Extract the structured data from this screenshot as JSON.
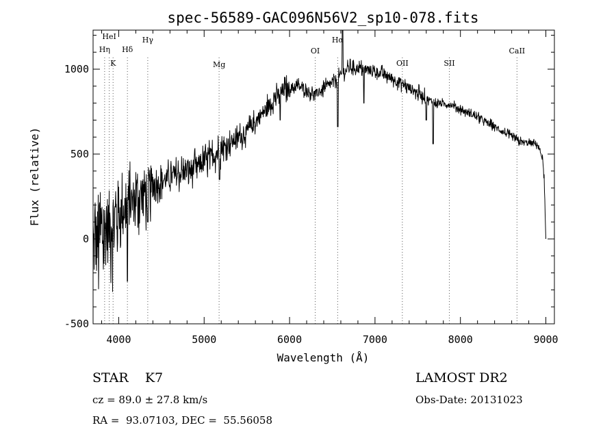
{
  "chart_data": {
    "type": "line",
    "title": "spec-56589-GAC096N56V2_sp10-078.fits",
    "xlabel": "Wavelength (Å)",
    "ylabel": "Flux (relative)",
    "xlim": [
      3700,
      9100
    ],
    "ylim": [
      -500,
      1230
    ],
    "xticks": [
      4000,
      5000,
      6000,
      7000,
      8000,
      9000
    ],
    "yticks": [
      -500,
      0,
      500,
      1000
    ],
    "grid": false,
    "spectral_lines": [
      {
        "name": "HeI",
        "wavelength": 3889
      },
      {
        "name": "Hη",
        "wavelength": 3835
      },
      {
        "name": "K",
        "wavelength": 3934
      },
      {
        "name": "Hδ",
        "wavelength": 4102
      },
      {
        "name": "Hγ",
        "wavelength": 4340
      },
      {
        "name": "Mg",
        "wavelength": 5175
      },
      {
        "name": "OI",
        "wavelength": 6300
      },
      {
        "name": "Hα",
        "wavelength": 6563
      },
      {
        "name": "OII",
        "wavelength": 7320
      },
      {
        "name": "SII",
        "wavelength": 7870
      },
      {
        "name": "CaII",
        "wavelength": 8662
      }
    ],
    "continuum": [
      {
        "x": 3700,
        "y": -50
      },
      {
        "x": 3850,
        "y": 50
      },
      {
        "x": 4000,
        "y": 150
      },
      {
        "x": 4300,
        "y": 280
      },
      {
        "x": 4500,
        "y": 340
      },
      {
        "x": 4800,
        "y": 400
      },
      {
        "x": 5000,
        "y": 450
      },
      {
        "x": 5200,
        "y": 530
      },
      {
        "x": 5500,
        "y": 630
      },
      {
        "x": 5700,
        "y": 750
      },
      {
        "x": 5900,
        "y": 870
      },
      {
        "x": 6100,
        "y": 900
      },
      {
        "x": 6300,
        "y": 850
      },
      {
        "x": 6500,
        "y": 920
      },
      {
        "x": 6700,
        "y": 1010
      },
      {
        "x": 6900,
        "y": 1000
      },
      {
        "x": 7100,
        "y": 970
      },
      {
        "x": 7300,
        "y": 920
      },
      {
        "x": 7500,
        "y": 860
      },
      {
        "x": 7700,
        "y": 800
      },
      {
        "x": 7900,
        "y": 790
      },
      {
        "x": 8100,
        "y": 740
      },
      {
        "x": 8300,
        "y": 690
      },
      {
        "x": 8500,
        "y": 630
      },
      {
        "x": 8700,
        "y": 570
      },
      {
        "x": 8900,
        "y": 560
      },
      {
        "x": 8960,
        "y": 480
      },
      {
        "x": 8980,
        "y": 350
      },
      {
        "x": 9000,
        "y": 0
      }
    ],
    "features": [
      {
        "x": 4102,
        "y": -250
      },
      {
        "x": 4340,
        "y": 100
      },
      {
        "x": 5180,
        "y": 350
      },
      {
        "x": 5890,
        "y": 700
      },
      {
        "x": 6563,
        "y": 660
      },
      {
        "x": 6620,
        "y": 1230
      },
      {
        "x": 6870,
        "y": 800
      },
      {
        "x": 7600,
        "y": 700
      },
      {
        "x": 7680,
        "y": 560
      }
    ]
  },
  "footer": {
    "object": "STAR    K7",
    "survey": "LAMOST DR2",
    "cz": "cz = 89.0 ± 27.8 km/s",
    "obs_date": "Obs-Date: 20131023",
    "coords": "RA =  93.07103, DEC =  55.56058"
  }
}
